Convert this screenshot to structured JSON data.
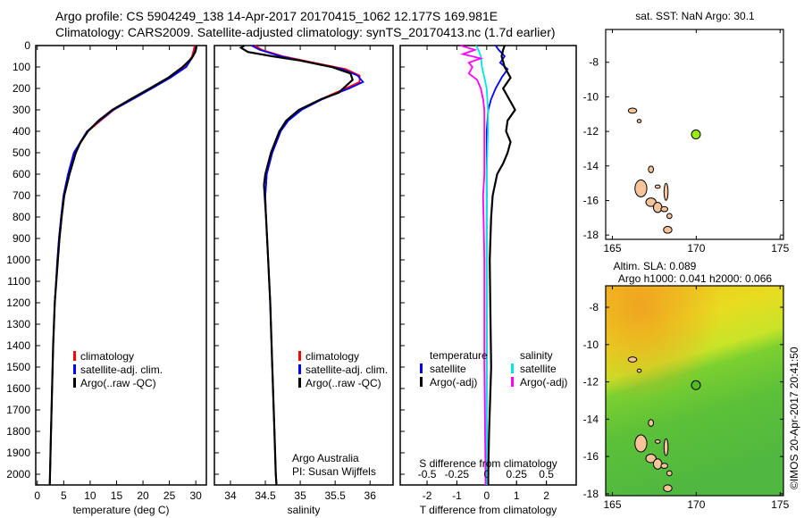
{
  "title": {
    "line1": "Argo profile: CS 5904249_138 14-Apr-2017 20170415_1062 12.177S 169.981E",
    "line2": "Climatology: CARS2009. Satellite-adjusted climatology: synTS_20170413.nc (1.7d earlier)"
  },
  "credit": "©IMOS 20-Apr-2017 20:41:50",
  "chart_data": [
    {
      "type": "line",
      "id": "temperature",
      "xlabel": "temperature (deg C)",
      "ylabel": "",
      "xlim": [
        -0.3,
        32
      ],
      "ylim": [
        2050,
        0
      ],
      "xticks": [
        "0",
        "5",
        "10",
        "15",
        "20",
        "25",
        "30"
      ],
      "xtick_values": [
        0,
        5,
        10,
        15,
        20,
        25,
        30
      ],
      "yticks": [
        "0",
        "100",
        "200",
        "300",
        "400",
        "500",
        "600",
        "700",
        "800",
        "900",
        "1000",
        "1100",
        "1200",
        "1300",
        "1400",
        "1500",
        "1600",
        "1700",
        "1800",
        "1900",
        "2000"
      ],
      "ytick_values": [
        0,
        100,
        200,
        300,
        400,
        500,
        600,
        700,
        800,
        900,
        1000,
        1100,
        1200,
        1300,
        1400,
        1500,
        1600,
        1700,
        1800,
        1900,
        2000
      ],
      "legend": [
        "climatology",
        "satellite-adj. clim.",
        "Argo(..raw -QC)"
      ],
      "series": [
        {
          "name": "climatology",
          "color": "#ff0000",
          "depth": [
            0,
            20,
            50,
            100,
            150,
            200,
            250,
            300,
            350,
            400,
            500,
            600,
            700,
            800,
            900,
            1000,
            1200,
            1400,
            1600,
            1800,
            2000,
            2050
          ],
          "values": [
            29.8,
            29.6,
            29.3,
            28,
            25,
            21.5,
            18,
            14.5,
            12,
            9.6,
            7,
            5.9,
            5,
            4.5,
            4.1,
            3.8,
            3.3,
            3,
            2.8,
            2.6,
            2.4,
            2.35
          ]
        },
        {
          "name": "satellite-adj. clim.",
          "color": "#0000ff",
          "depth": [
            0,
            20,
            50,
            100,
            150,
            200,
            250,
            300,
            350,
            400,
            500,
            600,
            700,
            800,
            900,
            1000,
            1200,
            1400,
            1600,
            1800,
            2000,
            2050
          ],
          "values": [
            30.1,
            29.9,
            29.5,
            28.2,
            25.2,
            21.7,
            18.1,
            14.4,
            11.8,
            9.4,
            6.9,
            5.8,
            4.95,
            4.5,
            4.1,
            3.8,
            3.3,
            3,
            2.8,
            2.6,
            2.4,
            2.35
          ]
        },
        {
          "name": "Argo(..raw -QC)",
          "color": "#000000",
          "depth": [
            0,
            10,
            30,
            60,
            100,
            150,
            200,
            250,
            300,
            350,
            400,
            450,
            500,
            600,
            700,
            800,
            900,
            1000,
            1200,
            1400,
            1600,
            1800,
            2000,
            2050
          ],
          "values": [
            30.1,
            30.1,
            29.9,
            29.2,
            27.5,
            24.8,
            21.3,
            17.7,
            14.2,
            11.6,
            9.6,
            8.2,
            7.3,
            6.1,
            5.1,
            4.6,
            4.2,
            3.9,
            3.3,
            3,
            2.8,
            2.6,
            2.4,
            2.35
          ]
        }
      ]
    },
    {
      "type": "line",
      "id": "salinity",
      "xlabel": "salinity",
      "xlim": [
        33.77,
        36.33
      ],
      "ylim": [
        2050,
        0
      ],
      "xticks": [
        "34",
        "34.5",
        "35",
        "35.5",
        "36"
      ],
      "xtick_values": [
        34,
        34.5,
        35,
        35.5,
        36
      ],
      "legend": [
        "climatology",
        "satellite-adj. clim.",
        "Argo(..raw -QC)"
      ],
      "annotation": [
        "Argo Australia",
        "PI: Susan Wijffels"
      ],
      "series": [
        {
          "name": "climatology",
          "color": "#ff0000",
          "depth": [
            0,
            20,
            50,
            80,
            110,
            140,
            170,
            200,
            250,
            300,
            350,
            400,
            500,
            600,
            700,
            800,
            1000,
            1200,
            1500,
            1800,
            2000,
            2050
          ],
          "values": [
            34.35,
            34.45,
            34.75,
            35.2,
            35.65,
            35.85,
            35.85,
            35.65,
            35.3,
            35.0,
            34.82,
            34.72,
            34.6,
            34.52,
            34.5,
            34.51,
            34.54,
            34.57,
            34.6,
            34.63,
            34.65,
            34.66
          ]
        },
        {
          "name": "satellite-adj. clim.",
          "color": "#0000ff",
          "depth": [
            0,
            20,
            50,
            80,
            110,
            140,
            170,
            200,
            250,
            300,
            350,
            400,
            500,
            600,
            700,
            800,
            1000,
            1200,
            1500,
            1800,
            2000,
            2050
          ],
          "values": [
            34.3,
            34.42,
            34.72,
            35.15,
            35.6,
            35.82,
            35.9,
            35.7,
            35.32,
            35.02,
            34.83,
            34.72,
            34.6,
            34.52,
            34.5,
            34.51,
            34.54,
            34.57,
            34.6,
            34.63,
            34.65,
            34.66
          ]
        },
        {
          "name": "Argo(..raw -QC)",
          "color": "#000000",
          "depth": [
            0,
            10,
            30,
            50,
            70,
            100,
            130,
            160,
            190,
            220,
            250,
            300,
            350,
            400,
            500,
            600,
            650,
            700,
            800,
            1000,
            1200,
            1500,
            1800,
            2000,
            2050
          ],
          "values": [
            34.2,
            34.15,
            34.25,
            34.6,
            35.0,
            35.45,
            35.72,
            35.75,
            35.65,
            35.55,
            35.3,
            34.98,
            34.8,
            34.7,
            34.58,
            34.5,
            34.48,
            34.49,
            34.51,
            34.54,
            34.57,
            34.6,
            34.63,
            34.65,
            34.66
          ]
        }
      ]
    },
    {
      "type": "line",
      "id": "difference",
      "xlabel": "T difference from climatology",
      "xlabel_top": "S difference from climatology",
      "xlim": [
        -2.9,
        3.0
      ],
      "ylim": [
        2050,
        0
      ],
      "xticks": [
        "-2",
        "-1",
        "0",
        "1",
        "2"
      ],
      "xtick_values": [
        -2,
        -1,
        0,
        1,
        2
      ],
      "s_xlim": [
        -0.725,
        0.75
      ],
      "s_xticks": [
        "-0.5",
        "-0.25",
        "0",
        "0.25",
        "0.5"
      ],
      "s_xtick_values": [
        -0.5,
        -0.25,
        0,
        0.25,
        0.5
      ],
      "legend_temperature": {
        "header": "temperature",
        "items": [
          "satellite",
          "Argo(-adj)"
        ]
      },
      "legend_salinity": {
        "header": "salinity",
        "items": [
          "satellite",
          "Argo(-adj)"
        ]
      },
      "series": [
        {
          "name": "temperature satellite",
          "axis": "T",
          "color": "#0000ff",
          "depth": [
            0,
            20,
            50,
            80,
            110,
            150,
            200,
            250,
            300,
            400,
            500,
            700,
            1000,
            1500,
            2000,
            2050
          ],
          "values": [
            0.3,
            0.4,
            0.6,
            0.45,
            0.7,
            0.5,
            0.3,
            0.15,
            0.05,
            0,
            0,
            0,
            0,
            0,
            0,
            0
          ]
        },
        {
          "name": "temperature Argo(-adj)",
          "axis": "T",
          "color": "#000000",
          "depth": [
            0,
            20,
            50,
            100,
            150,
            200,
            250,
            300,
            350,
            400,
            450,
            500,
            550,
            600,
            700,
            800,
            1000,
            1200,
            1500,
            1800,
            2000,
            2050
          ],
          "values": [
            0.6,
            0.55,
            0.5,
            0.6,
            0.8,
            0.55,
            0.75,
            0.95,
            0.7,
            0.65,
            0.8,
            0.7,
            0.55,
            0.35,
            0.2,
            0.15,
            0.1,
            0.12,
            0.15,
            0.08,
            0.05,
            0.05
          ]
        },
        {
          "name": "salinity satellite",
          "axis": "S",
          "color": "#00e5e5",
          "depth": [
            0,
            20,
            50,
            100,
            150,
            200,
            300,
            400,
            600,
            800,
            1000,
            1500,
            2000,
            2050
          ],
          "values": [
            -0.09,
            -0.07,
            -0.05,
            -0.04,
            -0.02,
            0,
            0.01,
            0.01,
            0,
            0,
            0,
            0,
            0,
            0
          ]
        },
        {
          "name": "salinity Argo(-adj)",
          "axis": "S",
          "color": "#ff00ff",
          "depth": [
            0,
            20,
            40,
            60,
            80,
            100,
            130,
            160,
            200,
            250,
            300,
            400,
            600,
            700,
            1000,
            1500,
            2000,
            2050
          ],
          "values": [
            -0.22,
            -0.1,
            -0.2,
            -0.05,
            -0.15,
            -0.12,
            -0.15,
            -0.08,
            -0.05,
            -0.03,
            -0.02,
            -0.02,
            -0.02,
            -0.03,
            -0.02,
            -0.02,
            -0.01,
            -0.01
          ]
        }
      ]
    },
    {
      "type": "scatter",
      "id": "map-sst",
      "title": "sat. SST: NaN Argo: 30.1",
      "xlim": [
        164.6,
        175.2
      ],
      "ylim": [
        -18.25,
        -6.1
      ],
      "xticks": [
        "165",
        "170",
        "175"
      ],
      "xtick_values": [
        165,
        170,
        175
      ],
      "yticks": [
        "-8",
        "-10",
        "-12",
        "-14",
        "-16",
        "-18"
      ],
      "ytick_values": [
        -8,
        -10,
        -12,
        -14,
        -16,
        -18
      ],
      "point": {
        "lon": 169.981,
        "lat": -12.177,
        "color": "#99ee00"
      },
      "land_color": "#f7c49a"
    },
    {
      "type": "heatmap",
      "id": "map-sla",
      "title_line1": "Altim. SLA: 0.089",
      "title_line2": "Argo h1000: 0.041 h2000: 0.066",
      "xlim": [
        164.6,
        175.2
      ],
      "ylim": [
        -18.1,
        -6.85
      ],
      "xticks": [
        "165",
        "170",
        "175"
      ],
      "xtick_values": [
        165,
        170,
        175
      ],
      "yticks": [
        "-8",
        "-10",
        "-12",
        "-14",
        "-16",
        "-18"
      ],
      "ytick_values": [
        -8,
        -10,
        -12,
        -14,
        -16,
        -18
      ],
      "point": {
        "lon": 169.981,
        "lat": -12.177,
        "color": "#55bb22"
      },
      "land_color": "#f7c49a"
    }
  ]
}
